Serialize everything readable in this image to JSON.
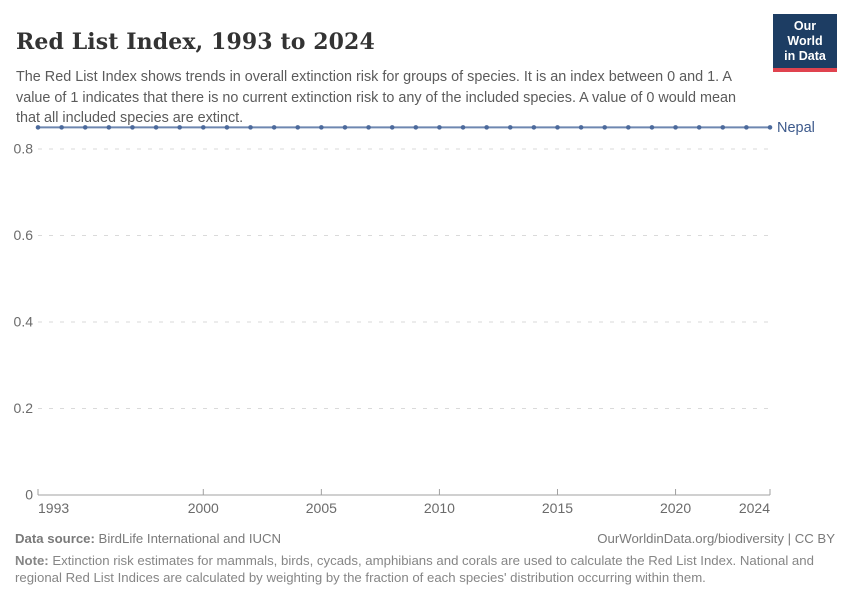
{
  "header": {
    "title": "Red List Index, 1993 to 2024",
    "subtitle": "The Red List Index shows trends in overall extinction risk for groups of species. It is an index between 0 and 1. A value of 1 indicates that there is no current extinction risk to any of the included species. A value of 0 would mean that all included species are extinct.",
    "logo": {
      "line1": "Our World",
      "line2": "in Data",
      "bg_color": "#1d3d63",
      "accent_color": "#e0434f"
    }
  },
  "chart_data": {
    "type": "line",
    "title": "Red List Index, 1993 to 2024",
    "xlabel": "",
    "ylabel": "",
    "xlim": [
      1993,
      2024
    ],
    "ylim": [
      0,
      0.85
    ],
    "grid": "horizontal-dashed",
    "legend_position": "end-of-line-label",
    "axis_color": "#a0a0a0",
    "gridline_color": "#dadada",
    "tick_label_color": "#6b6b6b",
    "yticks": [
      {
        "v": 0,
        "label": "0"
      },
      {
        "v": 0.2,
        "label": "0.2"
      },
      {
        "v": 0.4,
        "label": "0.4"
      },
      {
        "v": 0.6,
        "label": "0.6"
      },
      {
        "v": 0.8,
        "label": "0.8"
      }
    ],
    "xticks": [
      {
        "v": 1993,
        "label": "1993"
      },
      {
        "v": 2000,
        "label": "2000"
      },
      {
        "v": 2005,
        "label": "2005"
      },
      {
        "v": 2010,
        "label": "2010"
      },
      {
        "v": 2015,
        "label": "2015"
      },
      {
        "v": 2020,
        "label": "2020"
      },
      {
        "v": 2024,
        "label": "2024"
      }
    ],
    "series": [
      {
        "name": "Nepal",
        "line_color": "#6e87b0",
        "marker_color": "#4c6a9c",
        "label_color": "#3d5a8c",
        "x": [
          1993,
          1994,
          1995,
          1996,
          1997,
          1998,
          1999,
          2000,
          2001,
          2002,
          2003,
          2004,
          2005,
          2006,
          2007,
          2008,
          2009,
          2010,
          2011,
          2012,
          2013,
          2014,
          2015,
          2016,
          2017,
          2018,
          2019,
          2020,
          2021,
          2022,
          2023,
          2024
        ],
        "values": [
          0.85,
          0.85,
          0.85,
          0.85,
          0.85,
          0.85,
          0.85,
          0.85,
          0.85,
          0.85,
          0.85,
          0.85,
          0.85,
          0.85,
          0.85,
          0.85,
          0.85,
          0.85,
          0.85,
          0.85,
          0.85,
          0.85,
          0.85,
          0.85,
          0.85,
          0.85,
          0.85,
          0.85,
          0.85,
          0.85,
          0.85,
          0.85
        ]
      }
    ]
  },
  "footer": {
    "datasource_label": "Data source:",
    "datasource_value": " BirdLife International and IUCN",
    "link": "OurWorldinData.org/biodiversity | CC BY",
    "note_label": "Note:",
    "note_value": " Extinction risk estimates for mammals, birds, cycads, amphibians and corals are used to calculate the Red List Index. National and regional Red List Indices are calculated by weighting by the fraction of each species' distribution occurring within them."
  }
}
